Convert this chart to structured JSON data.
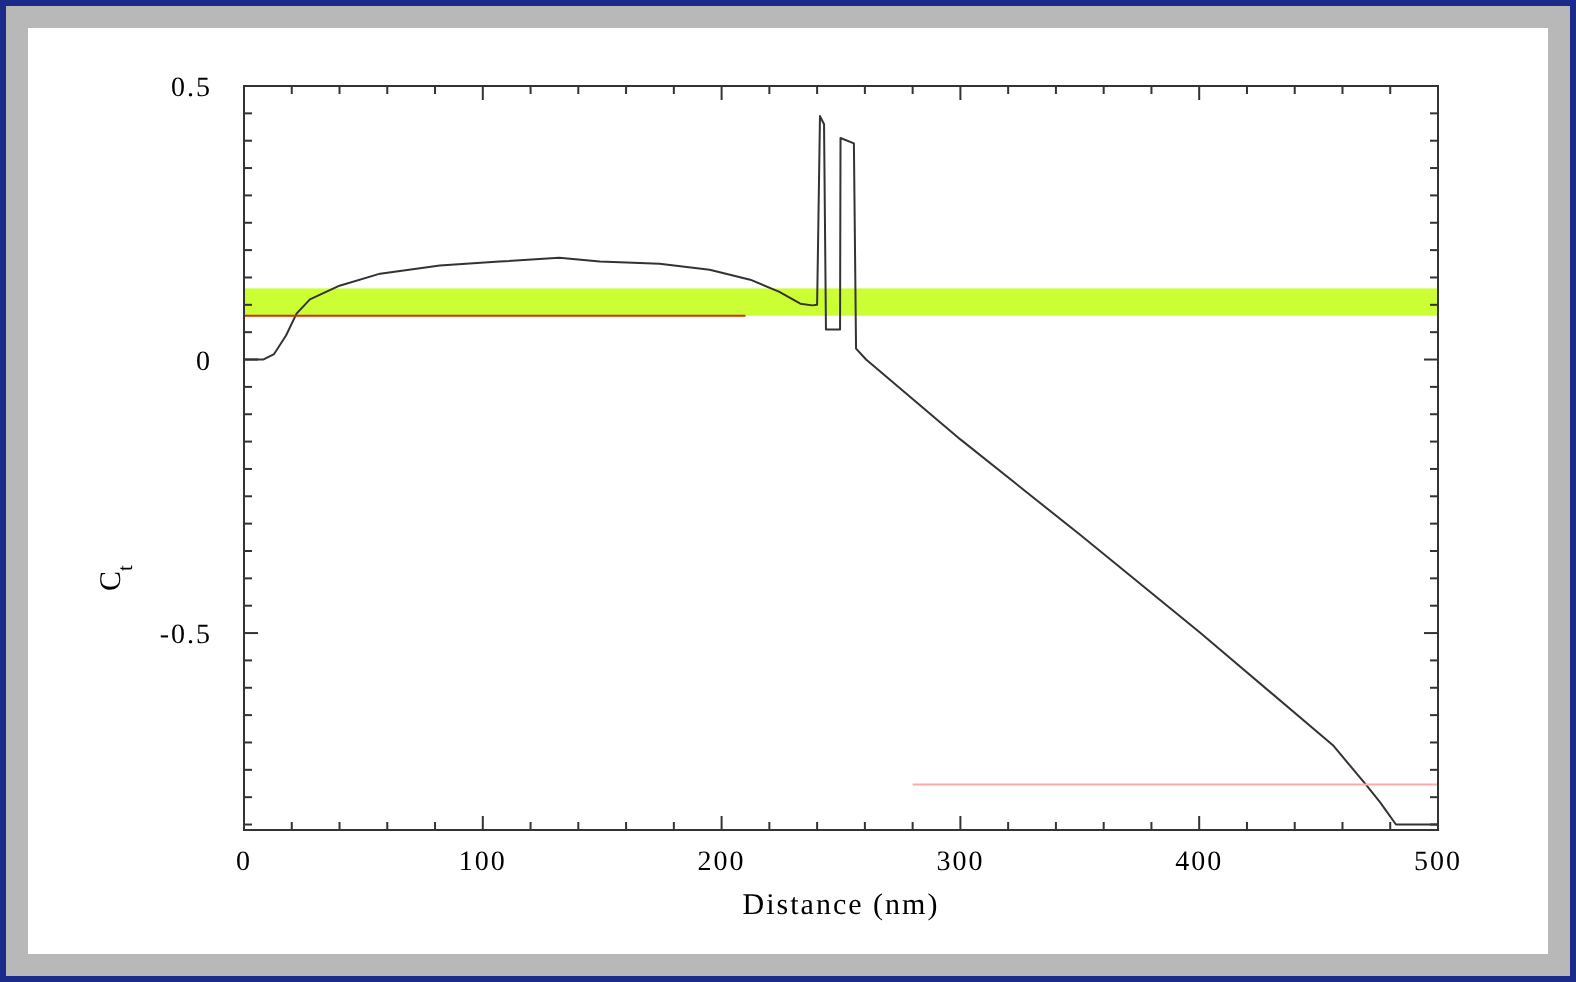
{
  "chart_data": {
    "type": "line",
    "xlabel": "Distance (nm)",
    "ylabel": "C$_{t}$",
    "xlim": [
      0,
      500
    ],
    "ylim": [
      -0.86,
      0.5
    ],
    "xticks": [
      0,
      {
        "value": 20,
        "label": null
      },
      {
        "value": 40,
        "label": null
      },
      {
        "value": 60,
        "label": null
      },
      {
        "value": 80,
        "label": null
      },
      100,
      {
        "value": 120,
        "label": null
      },
      {
        "value": 140,
        "label": null
      },
      {
        "value": 160,
        "label": null
      },
      {
        "value": 180,
        "label": null
      },
      200,
      {
        "value": 220,
        "label": null
      },
      {
        "value": 240,
        "label": null
      },
      {
        "value": 260,
        "label": null
      },
      {
        "value": 280,
        "label": null
      },
      300,
      {
        "value": 320,
        "label": null
      },
      {
        "value": 340,
        "label": null
      },
      {
        "value": 360,
        "label": null
      },
      {
        "value": 380,
        "label": null
      },
      400,
      {
        "value": 420,
        "label": null
      },
      {
        "value": 440,
        "label": null
      },
      {
        "value": 460,
        "label": null
      },
      {
        "value": 480,
        "label": null
      },
      500
    ],
    "yticks": [
      {
        "value": -0.85,
        "label": null
      },
      {
        "value": -0.8,
        "label": null
      },
      {
        "value": -0.75,
        "label": null
      },
      {
        "value": -0.7,
        "label": null
      },
      {
        "value": -0.65,
        "label": null
      },
      {
        "value": -0.6,
        "label": null
      },
      {
        "value": -0.55,
        "label": null
      },
      -0.5,
      {
        "value": -0.45,
        "label": null
      },
      {
        "value": -0.4,
        "label": null
      },
      {
        "value": -0.35,
        "label": null
      },
      {
        "value": -0.3,
        "label": null
      },
      {
        "value": -0.25,
        "label": null
      },
      {
        "value": -0.2,
        "label": null
      },
      {
        "value": -0.15,
        "label": null
      },
      {
        "value": -0.1,
        "label": null
      },
      {
        "value": -0.05,
        "label": null
      },
      0,
      {
        "value": 0.05,
        "label": null
      },
      {
        "value": 0.1,
        "label": null
      },
      {
        "value": 0.15,
        "label": null
      },
      {
        "value": 0.2,
        "label": null
      },
      {
        "value": 0.25,
        "label": null
      },
      {
        "value": 0.3,
        "label": null
      },
      {
        "value": 0.35,
        "label": null
      },
      {
        "value": 0.4,
        "label": null
      },
      {
        "value": 0.45,
        "label": null
      },
      0.5
    ],
    "grid": false,
    "bands": [
      {
        "axis": "y",
        "from": 0.08,
        "to": 0.13,
        "color": "#ccff33"
      }
    ],
    "series": [
      {
        "color": "#333333",
        "x": [
          0,
          8,
          12.6,
          17.6,
          22,
          27.6,
          40,
          57,
          82,
          107,
          132,
          149,
          174,
          195,
          212,
          224,
          233,
          238,
          240,
          241.2,
          242.9,
          243.7,
          249.6,
          249.8,
          255.4,
          256.3,
          260.5,
          300,
          350,
          400.3,
          456,
          470,
          475.7,
          482.4,
          490,
          500
        ],
        "values": [
          0,
          0,
          0.01,
          0.044,
          0.084,
          0.11,
          0.135,
          0.157,
          0.172,
          0.179,
          0.186,
          0.179,
          0.175,
          0.164,
          0.146,
          0.124,
          0.102,
          0.099,
          0.1,
          0.445,
          0.43,
          0.055,
          0.055,
          0.405,
          0.395,
          0.02,
          0,
          -0.146,
          -0.32,
          -0.499,
          -0.705,
          -0.778,
          -0.809,
          -0.85,
          -0.85,
          -0.85
        ]
      },
      {
        "color": "#cc3300",
        "x": [
          0,
          210
        ],
        "values": [
          0.08,
          0.08
        ]
      },
      {
        "color": "#ffaaaa",
        "x": [
          280,
          500
        ],
        "values": [
          -0.777,
          -0.777
        ]
      }
    ]
  }
}
